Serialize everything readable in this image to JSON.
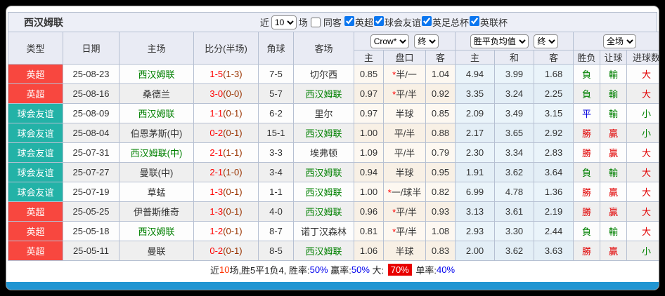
{
  "window_title": "西汉姆联",
  "toolbar": {
    "recent_label": "近",
    "recent_value": "10",
    "matches_label": "场",
    "same_away": {
      "label": "同客",
      "checked": false
    },
    "leagues": [
      {
        "label": "英超",
        "checked": true
      },
      {
        "label": "球会友谊",
        "checked": true
      },
      {
        "label": "英足总杯",
        "checked": true
      },
      {
        "label": "英联杯",
        "checked": true
      }
    ]
  },
  "table": {
    "main_headers": [
      "类型",
      "日期",
      "主场",
      "比分(半场)",
      "角球",
      "客场"
    ],
    "odds_group": {
      "select_company": "Crow*",
      "select_final": "终",
      "cols": [
        "主",
        "盘口",
        "客"
      ]
    },
    "avg_group": {
      "select_avg": "胜平负均值",
      "select_final": "终",
      "cols": [
        "主",
        "和",
        "客"
      ]
    },
    "result_group": {
      "select_scope": "全场",
      "cols": [
        "胜负",
        "让球",
        "进球数"
      ]
    },
    "rows": [
      {
        "type": "英超",
        "type_color": "red",
        "date": "25-08-23",
        "home": "西汉姆联",
        "home_hl": true,
        "score": "1-5",
        "half": "(1-3)",
        "corner": "7-5",
        "away": "切尔西",
        "away_hl": false,
        "odds_home": "0.85",
        "handicap_star": true,
        "handicap": "半/一",
        "odds_away": "1.04",
        "avg_win": "4.94",
        "avg_draw": "3.99",
        "avg_lose": "1.68",
        "result": "負",
        "result_color": "green",
        "let_result": "輸",
        "let_color": "green",
        "goals": "大",
        "goals_color": "red"
      },
      {
        "type": "英超",
        "type_color": "red",
        "date": "25-08-16",
        "home": "桑德兰",
        "home_hl": false,
        "score": "3-0",
        "half": "(0-0)",
        "corner": "5-7",
        "away": "西汉姆联",
        "away_hl": true,
        "odds_home": "0.97",
        "handicap_star": true,
        "handicap": "平/半",
        "odds_away": "0.92",
        "avg_win": "3.35",
        "avg_draw": "3.24",
        "avg_lose": "2.25",
        "result": "負",
        "result_color": "green",
        "let_result": "輸",
        "let_color": "green",
        "goals": "大",
        "goals_color": "red"
      },
      {
        "type": "球会友谊",
        "type_color": "teal",
        "date": "25-08-09",
        "home": "西汉姆联",
        "home_hl": true,
        "score": "1-1",
        "half": "(0-1)",
        "corner": "6-2",
        "away": "里尔",
        "away_hl": false,
        "odds_home": "0.97",
        "handicap_star": false,
        "handicap": "半球",
        "odds_away": "0.85",
        "avg_win": "2.09",
        "avg_draw": "3.49",
        "avg_lose": "3.15",
        "result": "平",
        "result_color": "blue",
        "let_result": "輸",
        "let_color": "green",
        "goals": "小",
        "goals_color": "green"
      },
      {
        "type": "球会友谊",
        "type_color": "teal",
        "date": "25-08-04",
        "home": "伯恩茅斯(中)",
        "home_hl": false,
        "score": "0-2",
        "half": "(0-1)",
        "corner": "15-1",
        "away": "西汉姆联",
        "away_hl": true,
        "odds_home": "1.00",
        "handicap_star": false,
        "handicap": "平/半",
        "odds_away": "0.88",
        "avg_win": "2.17",
        "avg_draw": "3.65",
        "avg_lose": "2.92",
        "result": "勝",
        "result_color": "red",
        "let_result": "贏",
        "let_color": "red",
        "goals": "小",
        "goals_color": "green"
      },
      {
        "type": "球会友谊",
        "type_color": "teal",
        "date": "25-07-31",
        "home": "西汉姆联(中)",
        "home_hl": true,
        "score": "2-1",
        "half": "(1-1)",
        "corner": "3-3",
        "away": "埃弗顿",
        "away_hl": false,
        "odds_home": "1.09",
        "handicap_star": false,
        "handicap": "平/半",
        "odds_away": "0.79",
        "avg_win": "2.30",
        "avg_draw": "3.34",
        "avg_lose": "2.83",
        "result": "勝",
        "result_color": "red",
        "let_result": "贏",
        "let_color": "red",
        "goals": "大",
        "goals_color": "red"
      },
      {
        "type": "球会友谊",
        "type_color": "teal",
        "date": "25-07-27",
        "home": "曼联(中)",
        "home_hl": false,
        "score": "2-1",
        "half": "(1-0)",
        "corner": "3-4",
        "away": "西汉姆联",
        "away_hl": true,
        "odds_home": "0.94",
        "handicap_star": false,
        "handicap": "半球",
        "odds_away": "0.95",
        "avg_win": "1.91",
        "avg_draw": "3.62",
        "avg_lose": "3.64",
        "result": "負",
        "result_color": "green",
        "let_result": "輸",
        "let_color": "green",
        "goals": "大",
        "goals_color": "red"
      },
      {
        "type": "球会友谊",
        "type_color": "teal",
        "date": "25-07-19",
        "home": "草蜢",
        "home_hl": false,
        "score": "1-3",
        "half": "(0-1)",
        "corner": "1-1",
        "away": "西汉姆联",
        "away_hl": true,
        "odds_home": "1.00",
        "handicap_star": true,
        "handicap": "一/球半",
        "odds_away": "0.82",
        "avg_win": "6.99",
        "avg_draw": "4.78",
        "avg_lose": "1.36",
        "result": "勝",
        "result_color": "red",
        "let_result": "贏",
        "let_color": "red",
        "goals": "大",
        "goals_color": "red"
      },
      {
        "type": "英超",
        "type_color": "red",
        "date": "25-05-25",
        "home": "伊普斯维奇",
        "home_hl": false,
        "score": "1-3",
        "half": "(0-1)",
        "corner": "4-0",
        "away": "西汉姆联",
        "away_hl": true,
        "odds_home": "0.96",
        "handicap_star": true,
        "handicap": "平/半",
        "odds_away": "0.93",
        "avg_win": "3.13",
        "avg_draw": "3.61",
        "avg_lose": "2.19",
        "result": "勝",
        "result_color": "red",
        "let_result": "贏",
        "let_color": "red",
        "goals": "大",
        "goals_color": "red"
      },
      {
        "type": "英超",
        "type_color": "red",
        "date": "25-05-18",
        "home": "西汉姆联",
        "home_hl": true,
        "score": "1-2",
        "half": "(0-1)",
        "corner": "8-7",
        "away": "诺丁汉森林",
        "away_hl": false,
        "odds_home": "0.81",
        "handicap_star": true,
        "handicap": "平/半",
        "odds_away": "1.08",
        "avg_win": "2.93",
        "avg_draw": "3.30",
        "avg_lose": "2.44",
        "result": "負",
        "result_color": "green",
        "let_result": "輸",
        "let_color": "green",
        "goals": "大",
        "goals_color": "red"
      },
      {
        "type": "英超",
        "type_color": "red",
        "date": "25-05-11",
        "home": "曼联",
        "home_hl": false,
        "score": "0-2",
        "half": "(0-1)",
        "corner": "8-5",
        "away": "西汉姆联",
        "away_hl": true,
        "odds_home": "1.06",
        "handicap_star": false,
        "handicap": "半球",
        "odds_away": "0.83",
        "avg_win": "2.00",
        "avg_draw": "3.62",
        "avg_lose": "3.63",
        "result": "勝",
        "result_color": "red",
        "let_result": "贏",
        "let_color": "red",
        "goals": "小",
        "goals_color": "green"
      }
    ]
  },
  "footer": {
    "segments": [
      {
        "text": "近",
        "style": "plain"
      },
      {
        "text": "10",
        "style": "red"
      },
      {
        "text": "场,胜5平1负4, ",
        "style": "plain"
      },
      {
        "text": "胜率:",
        "style": "plain"
      },
      {
        "text": "50%",
        "style": "blue"
      },
      {
        "text": " 赢率:",
        "style": "plain"
      },
      {
        "text": "50%",
        "style": "blue"
      },
      {
        "text": " 大: ",
        "style": "plain"
      },
      {
        "text": "70%",
        "style": "badge"
      },
      {
        "text": " 单率:",
        "style": "plain"
      },
      {
        "text": "40%",
        "style": "blue"
      }
    ]
  },
  "colors": {
    "type_red": "#f8473f",
    "type_teal": "#23b2a7",
    "team_highlight_green": "#008000",
    "score_red": "#ff0000",
    "half_score_dark": "#993300",
    "win_red": "#e10000",
    "lose_green": "#008000",
    "draw_blue": "#0000dd",
    "percent_blue": "#0000ee",
    "footer_badge_bg": "#e80000",
    "bottom_bar_blue": "#2095d2"
  }
}
